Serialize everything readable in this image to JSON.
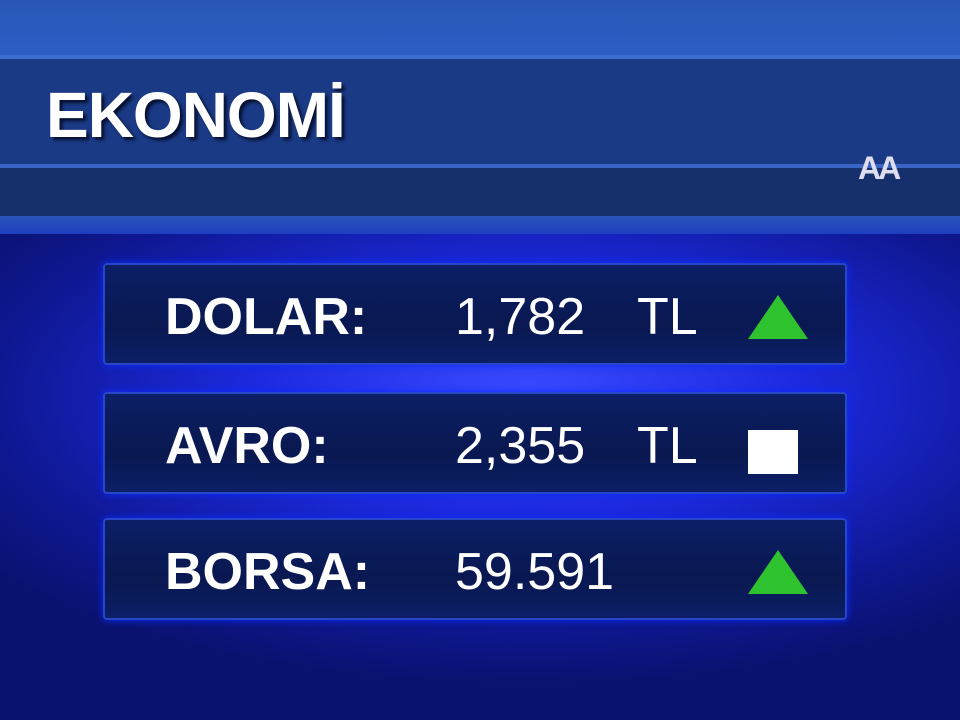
{
  "header": {
    "title": "EKONOMİ",
    "source": "AA"
  },
  "colors": {
    "up": "#2ec22e",
    "unchanged": "#ffffff"
  },
  "rows": [
    {
      "label": "DOLAR:",
      "value": "1,782",
      "unit": "TL",
      "trend": "up"
    },
    {
      "label": "AVRO:",
      "value": "2,355",
      "unit": "TL",
      "trend": "unchanged"
    },
    {
      "label": "BORSA:",
      "value": "59.591",
      "trend": "up"
    }
  ]
}
